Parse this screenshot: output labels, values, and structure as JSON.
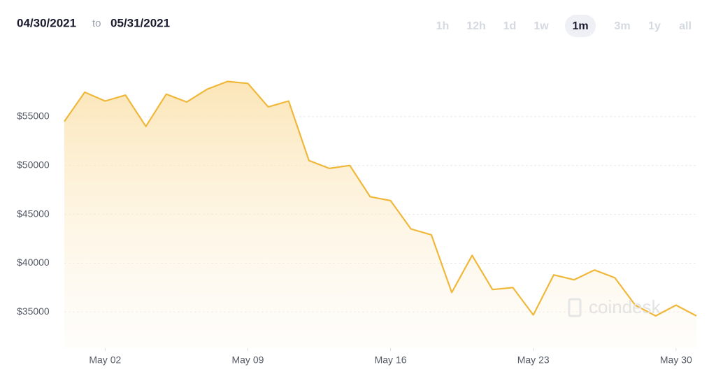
{
  "header": {
    "from": "04/30/2021",
    "to_word": "to",
    "to": "05/31/2021",
    "ranges": [
      "1h",
      "12h",
      "1d",
      "1w",
      "1m",
      "3m",
      "1y",
      "all"
    ],
    "active_range": 4
  },
  "watermark": "coindesk",
  "chart_data": {
    "type": "area",
    "x": [
      "2021-04-30",
      "2021-05-01",
      "2021-05-02",
      "2021-05-03",
      "2021-05-04",
      "2021-05-05",
      "2021-05-06",
      "2021-05-07",
      "2021-05-08",
      "2021-05-09",
      "2021-05-10",
      "2021-05-11",
      "2021-05-12",
      "2021-05-13",
      "2021-05-14",
      "2021-05-15",
      "2021-05-16",
      "2021-05-17",
      "2021-05-18",
      "2021-05-19",
      "2021-05-20",
      "2021-05-21",
      "2021-05-22",
      "2021-05-23",
      "2021-05-24",
      "2021-05-25",
      "2021-05-26",
      "2021-05-27",
      "2021-05-28",
      "2021-05-29",
      "2021-05-30",
      "2021-05-31"
    ],
    "values": [
      54500,
      57500,
      56600,
      57200,
      54000,
      57300,
      56500,
      57800,
      58600,
      58400,
      56000,
      56600,
      50500,
      49700,
      50000,
      46800,
      46400,
      43500,
      42900,
      37000,
      40800,
      37300,
      37500,
      34700,
      38800,
      38300,
      39300,
      38500,
      35700,
      34600,
      35700,
      34600
    ],
    "color": "#f0b83a",
    "xlim": [
      "2021-04-30",
      "2021-05-31"
    ],
    "xticks": [
      {
        "value": "2021-05-02",
        "label": "May 02"
      },
      {
        "value": "2021-05-09",
        "label": "May 09"
      },
      {
        "value": "2021-05-16",
        "label": "May 16"
      },
      {
        "value": "2021-05-23",
        "label": "May 23"
      },
      {
        "value": "2021-05-30",
        "label": "May 30"
      }
    ],
    "ylim": [
      31300,
      60500
    ],
    "yticks": [
      {
        "value": 35000,
        "label": "$35000"
      },
      {
        "value": 40000,
        "label": "$40000"
      },
      {
        "value": 45000,
        "label": "$45000"
      },
      {
        "value": 50000,
        "label": "$50000"
      },
      {
        "value": 55000,
        "label": "$55000"
      }
    ],
    "grid": true
  }
}
